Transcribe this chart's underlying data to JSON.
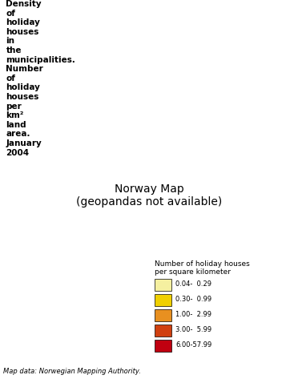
{
  "title": "Density of holiday houses in the municipalities. Number of holiday houses per\nkm² land area. January 2004",
  "legend_title": "Number of holiday houses\nper square kilometer",
  "legend_labels": [
    "0.04-  0.29",
    "0.30-  0.99",
    "1.00-  2.99",
    "3.00-  5.99",
    "6.00-57.99"
  ],
  "legend_colors": [
    "#F5F0A0",
    "#F0D000",
    "#E89020",
    "#D04010",
    "#C00010"
  ],
  "map_source": "Map data: Norwegian Mapping Authority.",
  "background_color": "#ffffff",
  "border_color": "#888888",
  "fig_width": 3.72,
  "fig_height": 4.78,
  "dpi": 100
}
